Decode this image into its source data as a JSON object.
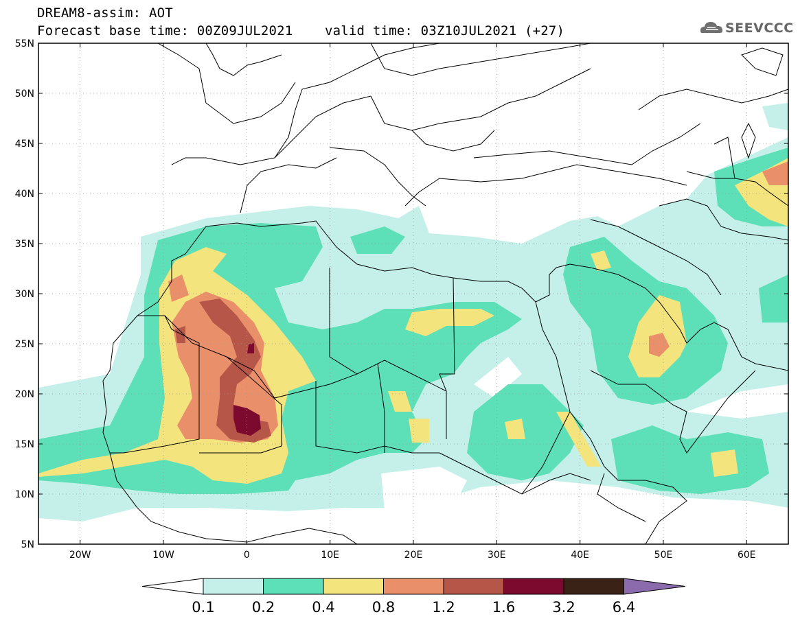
{
  "header": {
    "title_line1": "DREAM8-assim: AOT",
    "title_line2": "Forecast base time: 00Z09JUL2021    valid time: 03Z10JUL2021 (+27)"
  },
  "logo": {
    "text": "SEEVCCC",
    "icon": "cloud-icon"
  },
  "map": {
    "variable": "AOT",
    "extent": {
      "lon_min": -25,
      "lon_max": 65,
      "lat_min": 5,
      "lat_max": 55
    },
    "lat_labels": [
      "5N",
      "10N",
      "15N",
      "20N",
      "25N",
      "30N",
      "35N",
      "40N",
      "45N",
      "50N",
      "55N"
    ],
    "lat_values": [
      5,
      10,
      15,
      20,
      25,
      30,
      35,
      40,
      45,
      50,
      55
    ],
    "lon_labels": [
      "20W",
      "10W",
      "0",
      "10E",
      "20E",
      "30E",
      "40E",
      "50E",
      "60E"
    ],
    "lon_values": [
      -20,
      -10,
      0,
      10,
      20,
      30,
      40,
      50,
      60
    ],
    "grid": "dotted"
  },
  "colorbar": {
    "labels": [
      "0.1",
      "0.2",
      "0.4",
      "0.8",
      "1.2",
      "1.6",
      "3.2",
      "6.4"
    ],
    "colors": [
      "#c4f0e9",
      "#5de0b7",
      "#f4e47d",
      "#e9906a",
      "#b65648",
      "#7c0a2f",
      "#3a2216",
      "#8b6bab"
    ]
  }
}
